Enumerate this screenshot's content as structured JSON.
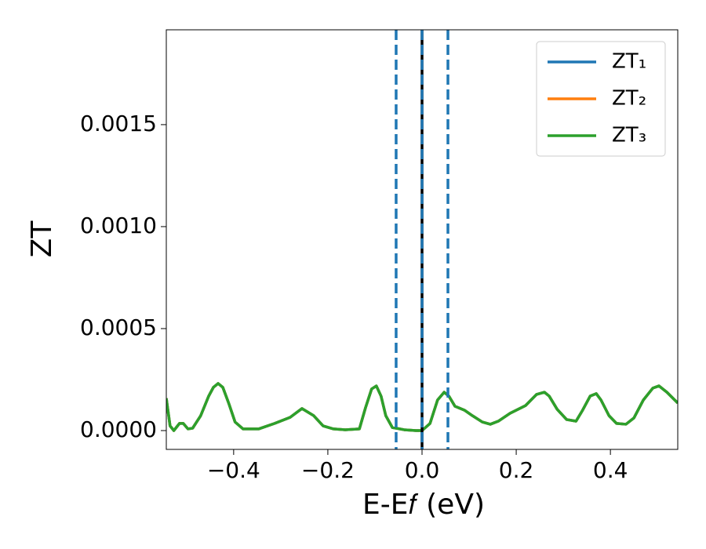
{
  "chart_data": {
    "type": "line",
    "xlabel": "E-E𝑓 (eV)",
    "ylabel": "ZT",
    "xlim": [
      -0.543,
      0.543
    ],
    "ylim": [
      -9.23e-05,
      0.001965
    ],
    "xticks": [
      {
        "value": -0.4,
        "label": "−0.4"
      },
      {
        "value": -0.2,
        "label": "−0.2"
      },
      {
        "value": 0,
        "label": "0.0"
      },
      0.2,
      0.4
    ],
    "yticks": [
      {
        "value": 0,
        "label": "0.0000"
      },
      {
        "value": 0.0005,
        "label": "0.0005"
      },
      {
        "value": 0.001,
        "label": "0.0010"
      },
      {
        "value": 0.0015,
        "label": "0.0015"
      }
    ],
    "grid": false,
    "legend": "upper right",
    "x": [
      -0.543,
      -0.535,
      -0.527,
      -0.515,
      -0.507,
      -0.497,
      -0.487,
      -0.47,
      -0.453,
      -0.443,
      -0.433,
      -0.423,
      -0.41,
      -0.397,
      -0.38,
      -0.347,
      -0.313,
      -0.28,
      -0.255,
      -0.23,
      -0.21,
      -0.188,
      -0.163,
      -0.133,
      -0.12,
      -0.107,
      -0.097,
      -0.087,
      -0.077,
      -0.063,
      -0.038,
      -0.013,
      0,
      0.017,
      0.033,
      0.047,
      0.057,
      0.07,
      0.09,
      0.107,
      0.128,
      0.145,
      0.162,
      0.187,
      0.22,
      0.243,
      0.26,
      0.27,
      0.287,
      0.307,
      0.327,
      0.34,
      0.357,
      0.37,
      0.38,
      0.397,
      0.413,
      0.433,
      0.45,
      0.47,
      0.49,
      0.503,
      0.52,
      0.543
    ],
    "series": [
      {
        "name": "ZT₁",
        "color": "#1f77b4",
        "values": [
          0.000158,
          2.3e-05,
          0,
          3.5e-05,
          3.5e-05,
          8e-06,
          1.2e-05,
          7.3e-05,
          0.000169,
          0.000212,
          0.000231,
          0.000212,
          0.000131,
          4.2e-05,
          8e-06,
          8e-06,
          3.5e-05,
          6.5e-05,
          0.000108,
          7.3e-05,
          2.3e-05,
          8e-06,
          4e-06,
          8e-06,
          0.000112,
          0.000204,
          0.000219,
          0.000169,
          7.3e-05,
          1.5e-05,
          4e-06,
          0,
          0,
          3.5e-05,
          0.00015,
          0.000188,
          0.000169,
          0.000119,
          0.0001,
          7.3e-05,
          4.2e-05,
          3.1e-05,
          4.6e-05,
          8.5e-05,
          0.000123,
          0.000177,
          0.000188,
          0.000169,
          0.000104,
          5.4e-05,
          4.6e-05,
          9.6e-05,
          0.000169,
          0.000181,
          0.00015,
          7.3e-05,
          3.5e-05,
          3.1e-05,
          6.2e-05,
          0.00015,
          0.000208,
          0.000219,
          0.000188,
          0.000135
        ]
      },
      {
        "name": "ZT₂",
        "color": "#ff7f0e",
        "values": [
          0.000158,
          2.3e-05,
          0,
          3.5e-05,
          3.5e-05,
          8e-06,
          1.2e-05,
          7.3e-05,
          0.000169,
          0.000212,
          0.000231,
          0.000212,
          0.000131,
          4.2e-05,
          8e-06,
          8e-06,
          3.5e-05,
          6.5e-05,
          0.000108,
          7.3e-05,
          2.3e-05,
          8e-06,
          4e-06,
          8e-06,
          0.000112,
          0.000204,
          0.000219,
          0.000169,
          7.3e-05,
          1.5e-05,
          4e-06,
          0,
          0,
          3.5e-05,
          0.00015,
          0.000188,
          0.000169,
          0.000119,
          0.0001,
          7.3e-05,
          4.2e-05,
          3.1e-05,
          4.6e-05,
          8.5e-05,
          0.000123,
          0.000177,
          0.000188,
          0.000169,
          0.000104,
          5.4e-05,
          4.6e-05,
          9.6e-05,
          0.000169,
          0.000181,
          0.00015,
          7.3e-05,
          3.5e-05,
          3.1e-05,
          6.2e-05,
          0.00015,
          0.000208,
          0.000219,
          0.000188,
          0.000135
        ]
      },
      {
        "name": "ZT₃",
        "color": "#2ca02c",
        "values": [
          0.000158,
          2.3e-05,
          0,
          3.5e-05,
          3.5e-05,
          8e-06,
          1.2e-05,
          7.3e-05,
          0.000169,
          0.000212,
          0.000231,
          0.000212,
          0.000131,
          4.2e-05,
          8e-06,
          8e-06,
          3.5e-05,
          6.5e-05,
          0.000108,
          7.3e-05,
          2.3e-05,
          8e-06,
          4e-06,
          8e-06,
          0.000112,
          0.000204,
          0.000219,
          0.000169,
          7.3e-05,
          1.5e-05,
          4e-06,
          0,
          0,
          3.5e-05,
          0.00015,
          0.000188,
          0.000169,
          0.000119,
          0.0001,
          7.3e-05,
          4.2e-05,
          3.1e-05,
          4.6e-05,
          8.5e-05,
          0.000123,
          0.000177,
          0.000188,
          0.000169,
          0.000104,
          5.4e-05,
          4.6e-05,
          9.6e-05,
          0.000169,
          0.000181,
          0.00015,
          7.3e-05,
          3.5e-05,
          3.1e-05,
          6.2e-05,
          0.00015,
          0.000208,
          0.000219,
          0.000188,
          0.000135
        ]
      }
    ],
    "vlines": [
      {
        "x": -0.055,
        "color": "#1f77b4",
        "style": "dashed"
      },
      {
        "x": 0,
        "color": "#000000",
        "style": "solid"
      },
      {
        "x": 0,
        "color": "#1f77b4",
        "style": "dashed"
      },
      {
        "x": 0.055,
        "color": "#1f77b4",
        "style": "dashed"
      }
    ]
  }
}
